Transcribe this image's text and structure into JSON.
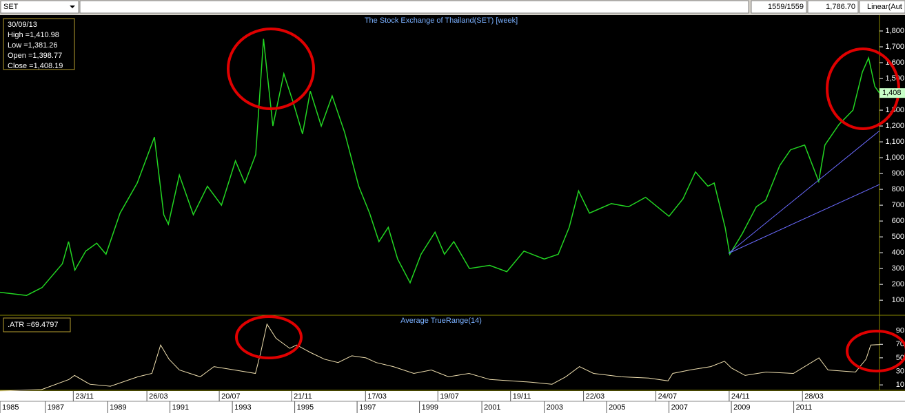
{
  "toolbar": {
    "symbol": "SET",
    "bar_count": "1559/1559",
    "price": "1,786.70",
    "scale_mode": "Linear(Aut"
  },
  "chart_data": [
    {
      "type": "line",
      "title": "The Stock Exchange of Thailand(SET) [week]",
      "color": "#22d622",
      "info_box": [
        "30/09/13",
        "High  =1,410.98",
        "Low  =1,381.26",
        "Open  =1,398.77",
        "Close  =1,408.19"
      ],
      "last_label": "1,408",
      "xlim": [
        1985.55,
        2013.75
      ],
      "ylim": [
        5,
        1900
      ],
      "yticks": [
        100,
        200,
        300,
        400,
        500,
        600,
        700,
        800,
        900,
        {
          "value": 1000,
          "label": "1,000"
        },
        {
          "value": 1100,
          "label": "1,100"
        },
        {
          "value": 1200,
          "label": "1,200"
        },
        {
          "value": 1300,
          "label": "1,300"
        },
        {
          "value": 1400,
          "label": "1,400"
        },
        {
          "value": 1500,
          "label": "1,500"
        },
        {
          "value": 1600,
          "label": "1,600"
        },
        {
          "value": 1700,
          "label": "1,700"
        },
        {
          "value": 1800,
          "label": "1,800"
        }
      ],
      "x": [
        1985.55,
        1986.4,
        1986.9,
        1987.55,
        1987.75,
        1987.95,
        1988.3,
        1988.65,
        1988.95,
        1989.4,
        1989.95,
        1990.5,
        1990.8,
        1990.95,
        1991.3,
        1991.75,
        1992.2,
        1992.65,
        1993.1,
        1993.4,
        1993.75,
        1994.0,
        1994.3,
        1994.65,
        1994.95,
        1995.25,
        1995.5,
        1995.85,
        1996.2,
        1996.6,
        1997.05,
        1997.4,
        1997.7,
        1998.0,
        1998.3,
        1998.7,
        1999.05,
        1999.5,
        1999.8,
        2000.1,
        2000.6,
        2001.25,
        2001.8,
        2002.35,
        2003.0,
        2003.45,
        2003.8,
        2004.1,
        2004.45,
        2005.15,
        2005.7,
        2006.25,
        2007.0,
        2007.45,
        2007.85,
        2008.25,
        2008.45,
        2008.8,
        2008.95,
        2009.35,
        2009.8,
        2010.1,
        2010.55,
        2010.9,
        2011.35,
        2011.8,
        2012.0,
        2012.45,
        2012.9,
        2013.2,
        2013.4,
        2013.6,
        2013.75
      ],
      "values": [
        150,
        130,
        180,
        330,
        470,
        290,
        410,
        460,
        390,
        650,
        840,
        1130,
        640,
        580,
        890,
        640,
        820,
        700,
        980,
        840,
        1020,
        1750,
        1200,
        1530,
        1350,
        1150,
        1420,
        1200,
        1390,
        1160,
        820,
        650,
        470,
        560,
        360,
        210,
        390,
        530,
        390,
        470,
        300,
        320,
        280,
        410,
        360,
        390,
        560,
        790,
        650,
        710,
        690,
        750,
        630,
        740,
        910,
        820,
        840,
        560,
        390,
        520,
        690,
        730,
        950,
        1050,
        1080,
        850,
        1080,
        1210,
        1300,
        1540,
        1630,
        1450,
        1408.19
      ]
    },
    {
      "type": "line",
      "title": "Average TrueRange(14)",
      "color": "#f0e0b0",
      "info_box": [
        ".ATR   =69.4797"
      ],
      "xlim": [
        1985.55,
        2013.75
      ],
      "ylim": [
        2,
        113
      ],
      "yticks": [
        10,
        30,
        50,
        70,
        90
      ],
      "xticks": [
        {
          "value": 1985.55,
          "label": "1985"
        },
        1987,
        1989,
        1991,
        1993,
        1995,
        1997,
        1999,
        2001,
        2003,
        2005,
        2007,
        2009,
        2011
      ],
      "date_ticks": [
        {
          "value": 1987.9,
          "label": "23/11"
        },
        {
          "value": 1990.26,
          "label": "26/03"
        },
        {
          "value": 1992.58,
          "label": "20/07"
        },
        {
          "value": 1994.9,
          "label": "21/11"
        },
        {
          "value": 1997.27,
          "label": "17/03"
        },
        {
          "value": 1999.59,
          "label": "19/07"
        },
        {
          "value": 2001.92,
          "label": "19/11"
        },
        {
          "value": 2004.26,
          "label": "22/03"
        },
        {
          "value": 2006.58,
          "label": "24/07"
        },
        {
          "value": 2008.93,
          "label": "24/11"
        },
        {
          "value": 2011.28,
          "label": "28/03"
        }
      ],
      "x": [
        1985.55,
        1986.88,
        1987.76,
        1987.94,
        1988.43,
        1989.09,
        1989.97,
        1990.42,
        1990.7,
        1990.97,
        1991.3,
        1991.97,
        1992.41,
        1993.07,
        1993.74,
        1993.91,
        1994.11,
        1994.4,
        1994.84,
        1995.06,
        1995.5,
        1995.95,
        1996.39,
        1996.83,
        1997.28,
        1997.61,
        1998.16,
        1998.82,
        1999.38,
        1999.93,
        2000.59,
        2001.26,
        2001.92,
        2002.58,
        2003.25,
        2003.69,
        2004.13,
        2004.58,
        2005.46,
        2006.35,
        2006.97,
        2007.12,
        2007.67,
        2008.34,
        2008.78,
        2009.0,
        2009.44,
        2010.11,
        2010.99,
        2011.81,
        2012.1,
        2012.98,
        2013.32,
        2013.47,
        2013.75
      ],
      "values": [
        1,
        3,
        18,
        24,
        11,
        8,
        22,
        27,
        69,
        48,
        32,
        22,
        37,
        32,
        27,
        58,
        100,
        79,
        64,
        69,
        58,
        48,
        43,
        53,
        50,
        43,
        37,
        27,
        32,
        22,
        27,
        18,
        16,
        14,
        11,
        22,
        37,
        27,
        22,
        20,
        16,
        27,
        32,
        37,
        45,
        35,
        24,
        29,
        27,
        50,
        32,
        29,
        48,
        69,
        69.4797
      ]
    }
  ]
}
